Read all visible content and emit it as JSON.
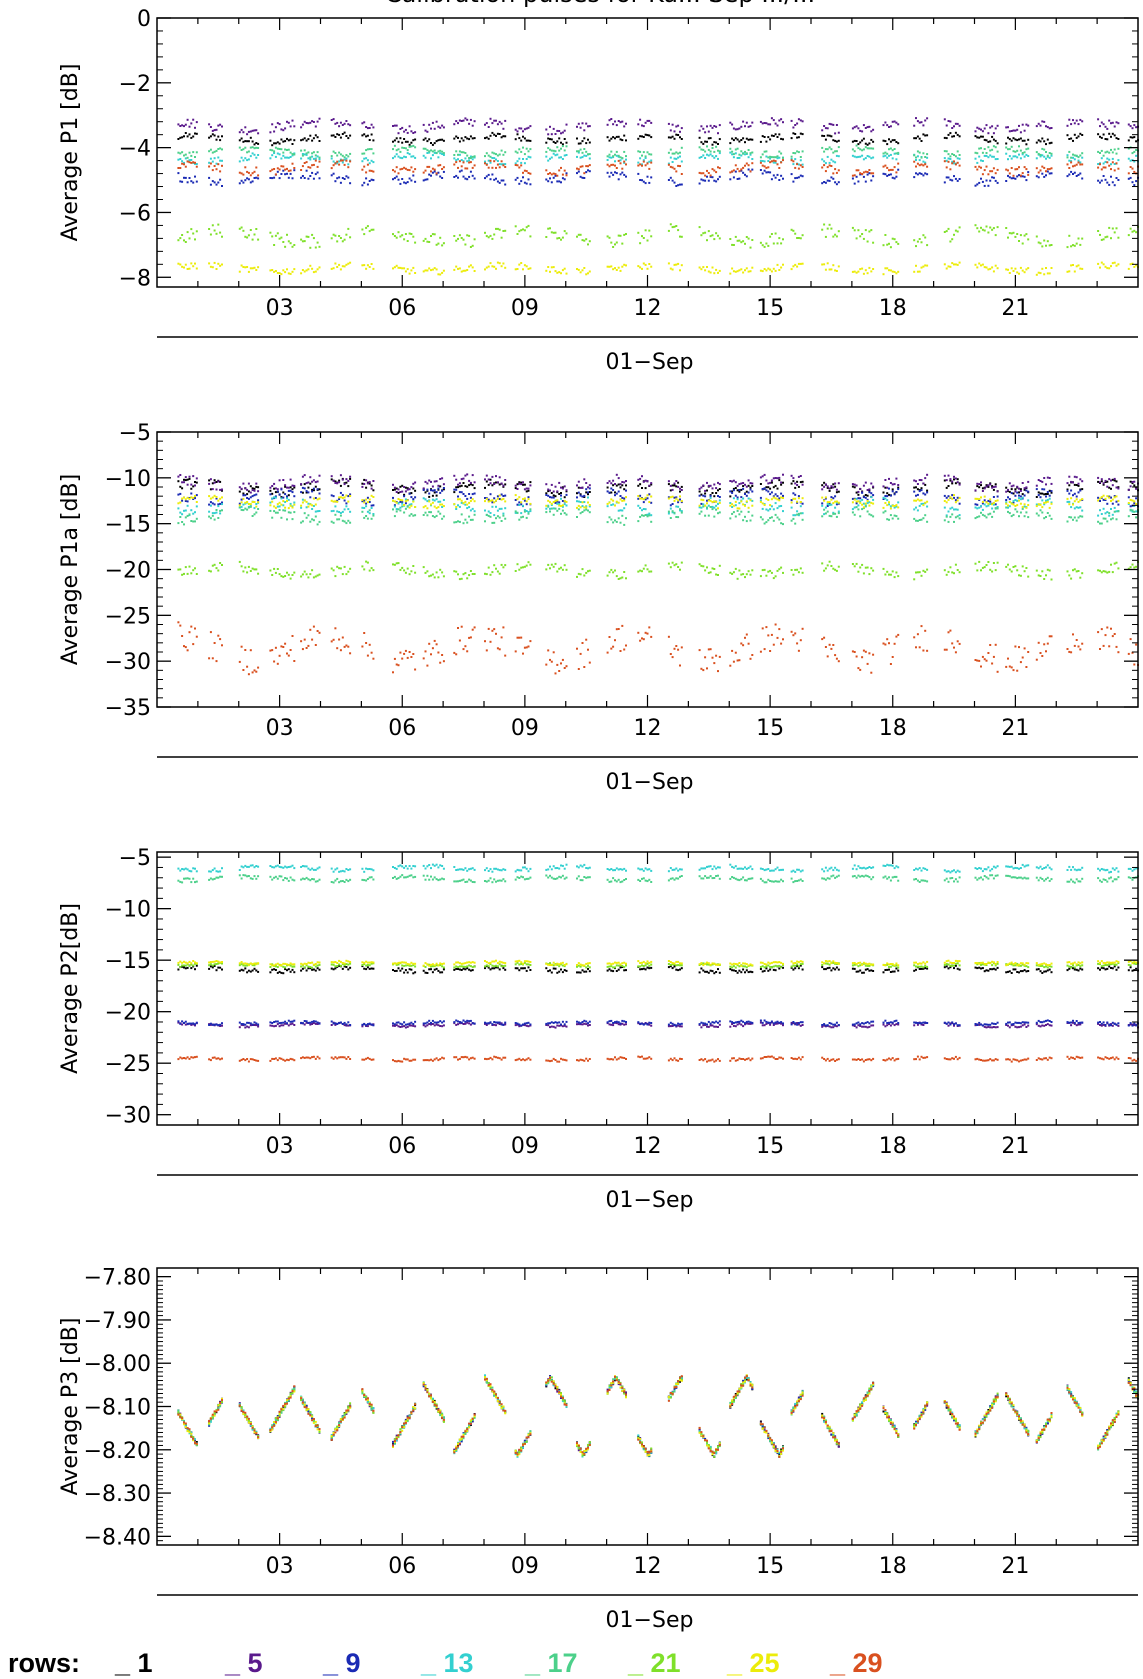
{
  "title": "Calibration pulses for Ku... Sep .../...",
  "legend": {
    "prefix": "rows:",
    "items": [
      {
        "row": "1",
        "label": "_ 1",
        "color": "#000000"
      },
      {
        "row": "5",
        "label": "_ 5",
        "color": "#5a1a8c"
      },
      {
        "row": "9",
        "label": "_ 9",
        "color": "#1a2ab4"
      },
      {
        "row": "13",
        "label": "_ 13",
        "color": "#33d0d0"
      },
      {
        "row": "17",
        "label": "_ 17",
        "color": "#4cd08a"
      },
      {
        "row": "21",
        "label": "_ 21",
        "color": "#7fe02a"
      },
      {
        "row": "25",
        "label": "_ 25",
        "color": "#ecec0a"
      },
      {
        "row": "29",
        "label": "_ 29",
        "color": "#d9501f"
      }
    ]
  },
  "chart_data": [
    {
      "type": "scatter",
      "ylabel": "Average  P1  [dB]",
      "xlabel": "01−Sep",
      "xlim": [
        0,
        24
      ],
      "xticks": [
        3,
        6,
        9,
        12,
        15,
        18,
        21
      ],
      "xtick_labels": [
        "03",
        "06",
        "09",
        "12",
        "15",
        "18",
        "21"
      ],
      "ylim": [
        -8.3,
        0
      ],
      "yticks": [
        0,
        -2,
        -4,
        -6,
        -8
      ],
      "ytick_labels": [
        "0",
        "−2",
        "−4",
        "−6",
        "−8"
      ],
      "series": [
        {
          "row": "1",
          "level": -3.7,
          "amp": 0.15
        },
        {
          "row": "5",
          "level": -3.3,
          "amp": 0.2
        },
        {
          "row": "9",
          "level": -4.9,
          "amp": 0.2
        },
        {
          "row": "13",
          "level": -4.3,
          "amp": 0.15
        },
        {
          "row": "17",
          "level": -4.1,
          "amp": 0.15
        },
        {
          "row": "21",
          "level": -6.7,
          "amp": 0.3
        },
        {
          "row": "25",
          "level": -7.7,
          "amp": 0.15
        },
        {
          "row": "29",
          "level": -4.6,
          "amp": 0.2
        }
      ]
    },
    {
      "type": "scatter",
      "ylabel": "Average  P1a  [dB]",
      "xlabel": "01−Sep",
      "xlim": [
        0,
        24
      ],
      "xticks": [
        3,
        6,
        9,
        12,
        15,
        18,
        21
      ],
      "xtick_labels": [
        "03",
        "06",
        "09",
        "12",
        "15",
        "18",
        "21"
      ],
      "ylim": [
        -35,
        -5
      ],
      "yticks": [
        -5,
        -10,
        -15,
        -20,
        -25,
        -30,
        -35
      ],
      "ytick_labels": [
        "−5",
        "−10",
        "−15",
        "−20",
        "−25",
        "−30",
        "−35"
      ],
      "series": [
        {
          "row": "1",
          "level": -11,
          "amp": 0.8
        },
        {
          "row": "5",
          "level": -10.5,
          "amp": 0.8
        },
        {
          "row": "9",
          "level": -12,
          "amp": 0.8
        },
        {
          "row": "13",
          "level": -13,
          "amp": 0.8
        },
        {
          "row": "17",
          "level": -14,
          "amp": 0.8
        },
        {
          "row": "21",
          "level": -20,
          "amp": 0.8
        },
        {
          "row": "25",
          "level": -12.5,
          "amp": 0.6
        },
        {
          "row": "29",
          "level": -28.5,
          "amp": 2.2
        }
      ]
    },
    {
      "type": "scatter",
      "ylabel": "Average  P2[dB]",
      "xlabel": "01−Sep",
      "xlim": [
        0,
        24
      ],
      "xticks": [
        3,
        6,
        9,
        12,
        15,
        18,
        21
      ],
      "xtick_labels": [
        "03",
        "06",
        "09",
        "12",
        "15",
        "18",
        "21"
      ],
      "ylim": [
        -31,
        -4.5
      ],
      "yticks": [
        -5,
        -10,
        -15,
        -20,
        -25,
        -30
      ],
      "ytick_labels": [
        "−5",
        "−10",
        "−15",
        "−20",
        "−25",
        "−30"
      ],
      "series": [
        {
          "row": "1",
          "level": -15.8,
          "amp": 0.3
        },
        {
          "row": "5",
          "level": -21.2,
          "amp": 0.2
        },
        {
          "row": "9",
          "level": -21.0,
          "amp": 0.2
        },
        {
          "row": "13",
          "level": -6.0,
          "amp": 0.3
        },
        {
          "row": "17",
          "level": -7.0,
          "amp": 0.3
        },
        {
          "row": "21",
          "level": -15.4,
          "amp": 0.2
        },
        {
          "row": "25",
          "level": -15.2,
          "amp": 0.2
        },
        {
          "row": "29",
          "level": -24.5,
          "amp": 0.2
        }
      ]
    },
    {
      "type": "scatter",
      "ylabel": "Average  P3  [dB]",
      "xlabel": "01−Sep",
      "xlim": [
        0,
        24
      ],
      "xticks": [
        3,
        6,
        9,
        12,
        15,
        18,
        21
      ],
      "xtick_labels": [
        "03",
        "06",
        "09",
        "12",
        "15",
        "18",
        "21"
      ],
      "ylim": [
        -8.42,
        -7.78
      ],
      "yticks": [
        -7.8,
        -7.9,
        -8.0,
        -8.1,
        -8.2,
        -8.3,
        -8.4
      ],
      "ytick_labels": [
        "−7.80",
        "−7.90",
        "−8.00",
        "−8.10",
        "−8.20",
        "−8.30",
        "−8.40"
      ],
      "series": [
        {
          "row": "1",
          "level": -8.12,
          "amp": 0.1
        },
        {
          "row": "5",
          "level": -8.12,
          "amp": 0.1
        },
        {
          "row": "9",
          "level": -8.12,
          "amp": 0.1
        },
        {
          "row": "13",
          "level": -8.12,
          "amp": 0.1
        },
        {
          "row": "17",
          "level": -8.12,
          "amp": 0.1
        },
        {
          "row": "21",
          "level": -8.12,
          "amp": 0.1
        },
        {
          "row": "25",
          "level": -8.12,
          "amp": 0.1
        },
        {
          "row": "29",
          "level": -8.12,
          "amp": 0.1
        }
      ]
    }
  ]
}
